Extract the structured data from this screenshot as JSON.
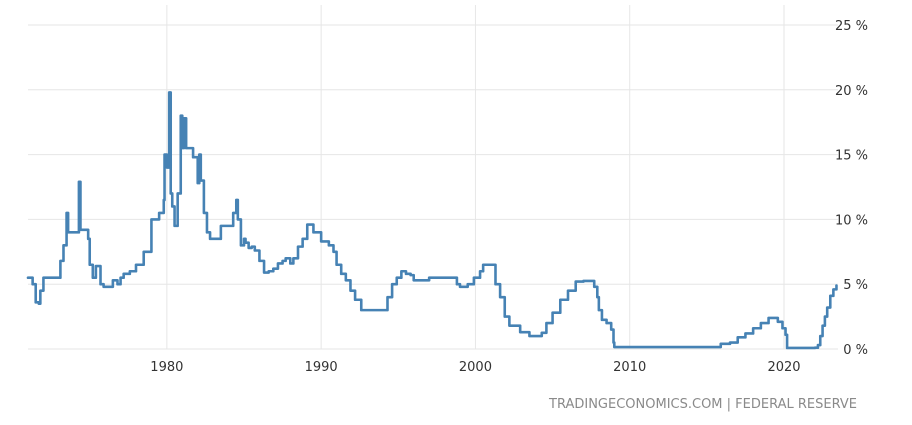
{
  "chart_data": {
    "type": "line",
    "title": "",
    "xlabel": "",
    "ylabel": "",
    "x_ticks": [
      "1980",
      "1990",
      "2000",
      "2010",
      "2020"
    ],
    "y_ticks": [
      "0 %",
      "5 %",
      "10 %",
      "15 %",
      "20 %",
      "25 %"
    ],
    "xlim": [
      1971.0,
      2023.5
    ],
    "ylim": [
      0,
      25
    ],
    "grid": true,
    "line_color": "#4682b4",
    "grid_color": "#e6e6e6",
    "source": "TRADINGECONOMICS.COM | FEDERAL RESERVE",
    "series": [
      {
        "x": [
          1971.0,
          1971.3,
          1971.5,
          1971.7,
          1971.8,
          1972.0,
          1972.3,
          1972.9,
          1973.1,
          1973.3,
          1973.5,
          1973.6,
          1973.7,
          1973.8,
          1974.0,
          1974.3,
          1974.4,
          1974.55,
          1974.7,
          1974.9,
          1975.0,
          1975.2,
          1975.4,
          1975.5,
          1975.7,
          1975.9,
          1976.0,
          1976.5,
          1976.8,
          1977.0,
          1977.2,
          1977.4,
          1977.6,
          1978.0,
          1978.5,
          1979.0,
          1979.5,
          1979.8,
          1979.85,
          1980.0,
          1980.15,
          1980.25,
          1980.35,
          1980.5,
          1980.7,
          1980.9,
          1981.0,
          1981.1,
          1981.25,
          1981.4,
          1981.5,
          1981.6,
          1981.7,
          1982.0,
          1982.1,
          1982.2,
          1982.4,
          1982.6,
          1982.8,
          1983.0,
          1983.5,
          1984.0,
          1984.3,
          1984.5,
          1984.6,
          1984.8,
          1985.0,
          1985.1,
          1985.3,
          1985.5,
          1985.7,
          1986.0,
          1986.3,
          1986.6,
          1986.9,
          1987.2,
          1987.5,
          1987.7,
          1988.0,
          1988.2,
          1988.5,
          1988.8,
          1989.1,
          1989.3,
          1989.5,
          1990.0,
          1990.5,
          1990.8,
          1991.0,
          1991.3,
          1991.6,
          1991.9,
          1992.2,
          1992.6,
          1993.0,
          1993.5,
          1994.0,
          1994.3,
          1994.6,
          1994.9,
          1995.2,
          1995.5,
          1995.8,
          1996.0,
          1996.5,
          1997.0,
          1997.5,
          1998.0,
          1998.5,
          1998.8,
          1999.0,
          1999.5,
          1999.9,
          2000.3,
          2000.5,
          2001.0,
          2001.3,
          2001.6,
          2001.9,
          2002.2,
          2002.5,
          2002.9,
          2003.5,
          2004.0,
          2004.3,
          2004.6,
          2005.0,
          2005.5,
          2006.0,
          2006.5,
          2007.0,
          2007.5,
          2007.7,
          2007.9,
          2008.0,
          2008.2,
          2008.5,
          2008.8,
          2008.95,
          2009.0,
          2010.0,
          2012.0,
          2014.0,
          2015.9,
          2016.5,
          2017.0,
          2017.5,
          2018.0,
          2018.5,
          2019.0,
          2019.3,
          2019.6,
          2019.9,
          2020.1,
          2020.2,
          2021.0,
          2022.0,
          2022.2,
          2022.35,
          2022.5,
          2022.65,
          2022.8,
          2023.0,
          2023.2,
          2023.4
        ],
        "values": [
          5.5,
          5.0,
          3.6,
          3.5,
          4.5,
          5.5,
          5.5,
          5.5,
          6.8,
          8.0,
          10.5,
          9.0,
          9.0,
          9.0,
          9.0,
          12.9,
          9.2,
          9.2,
          9.2,
          8.5,
          6.5,
          5.5,
          6.4,
          6.4,
          5.0,
          4.8,
          4.8,
          5.3,
          5.0,
          5.5,
          5.8,
          5.8,
          6.0,
          6.5,
          7.5,
          10.0,
          10.5,
          11.5,
          15.0,
          14.0,
          19.8,
          12.0,
          11.0,
          9.5,
          12.0,
          18.0,
          15.5,
          17.8,
          15.5,
          15.5,
          15.5,
          15.5,
          14.8,
          12.8,
          15.0,
          13.0,
          10.5,
          9.0,
          8.5,
          8.5,
          9.5,
          9.5,
          10.5,
          11.5,
          10.0,
          8.0,
          8.5,
          8.2,
          7.8,
          7.9,
          7.6,
          6.8,
          5.9,
          6.0,
          6.2,
          6.6,
          6.8,
          7.0,
          6.6,
          7.0,
          7.9,
          8.5,
          9.6,
          9.6,
          9.0,
          8.3,
          8.0,
          7.5,
          6.5,
          5.8,
          5.3,
          4.5,
          3.8,
          3.0,
          3.0,
          3.0,
          3.0,
          4.0,
          5.0,
          5.5,
          6.0,
          5.8,
          5.7,
          5.3,
          5.3,
          5.5,
          5.5,
          5.5,
          5.5,
          5.0,
          4.8,
          5.0,
          5.5,
          6.0,
          6.5,
          6.5,
          5.0,
          4.0,
          2.5,
          1.8,
          1.8,
          1.3,
          1.0,
          1.0,
          1.25,
          2.0,
          2.8,
          3.8,
          4.5,
          5.2,
          5.25,
          5.25,
          4.8,
          4.0,
          3.0,
          2.25,
          2.0,
          1.5,
          0.5,
          0.15,
          0.15,
          0.15,
          0.15,
          0.4,
          0.5,
          0.9,
          1.2,
          1.6,
          2.0,
          2.4,
          2.4,
          2.1,
          1.6,
          1.1,
          0.08,
          0.08,
          0.1,
          0.3,
          1.0,
          1.8,
          2.5,
          3.2,
          4.1,
          4.6,
          4.9
        ]
      }
    ]
  }
}
